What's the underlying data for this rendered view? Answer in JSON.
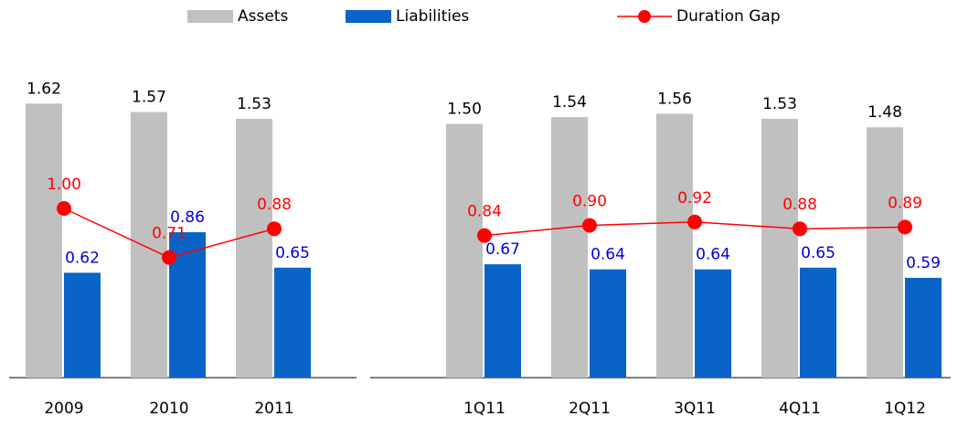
{
  "chart_data": {
    "type": "bar_line",
    "categories": [
      "2009",
      "2010",
      "2011",
      null,
      "1Q11",
      "2Q11",
      "3Q11",
      "4Q11",
      "1Q12"
    ],
    "series": [
      {
        "name": "Assets",
        "type": "bar",
        "color": "#c0c0c0",
        "label_color": "#000000",
        "values": [
          1.62,
          1.57,
          1.53,
          null,
          1.5,
          1.54,
          1.56,
          1.53,
          1.48
        ],
        "value_labels": [
          "1.62",
          "1.57",
          "1.53",
          null,
          "1.50",
          "1.54",
          "1.56",
          "1.53",
          "1.48"
        ]
      },
      {
        "name": "Liabilities",
        "type": "bar",
        "color": "#0a64c8",
        "label_color": "#0000dd",
        "values": [
          0.62,
          0.86,
          0.65,
          null,
          0.67,
          0.64,
          0.64,
          0.65,
          0.59
        ],
        "value_labels": [
          "0.62",
          "0.86",
          "0.65",
          null,
          "0.67",
          "0.64",
          "0.64",
          "0.65",
          "0.59"
        ]
      },
      {
        "name": "Duration Gap",
        "type": "line",
        "color": "#ff0000",
        "label_color": "#ff0000",
        "values": [
          1.0,
          0.71,
          0.88,
          null,
          0.84,
          0.9,
          0.92,
          0.88,
          0.89
        ],
        "value_labels": [
          "1.00",
          "0.71",
          "0.88",
          null,
          "0.84",
          "0.90",
          "0.92",
          "0.88",
          "0.89"
        ]
      }
    ],
    "ylim": [
      0,
      1.8
    ]
  }
}
